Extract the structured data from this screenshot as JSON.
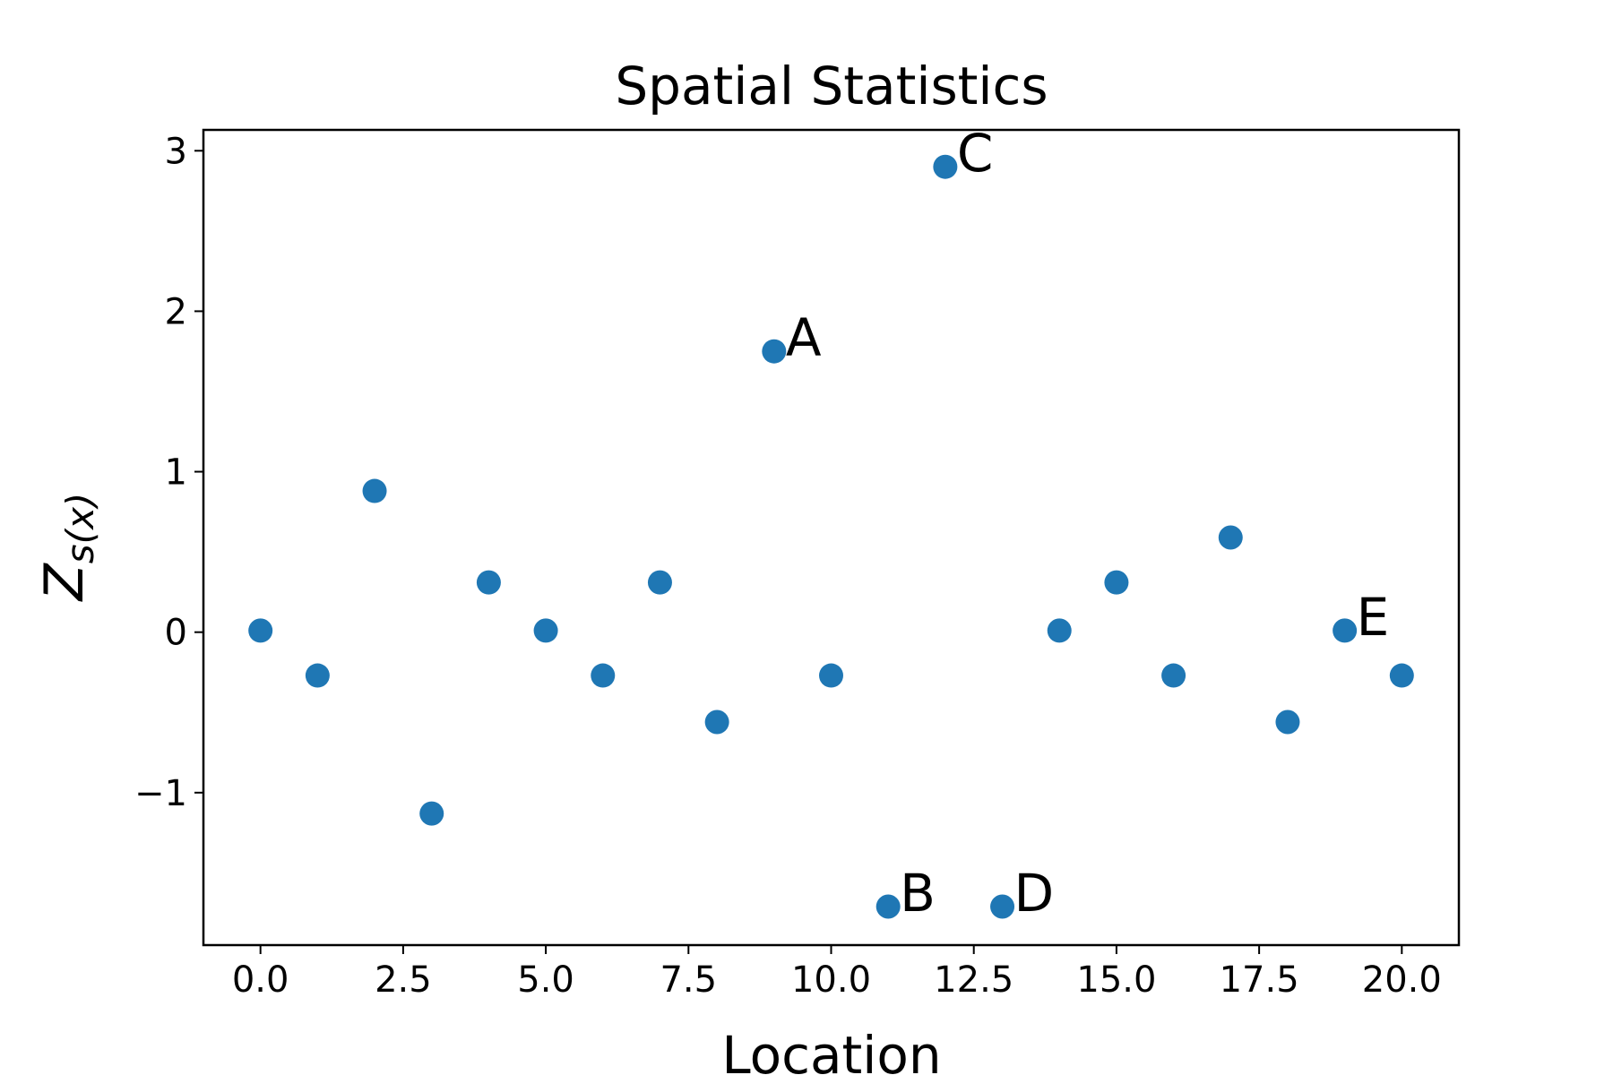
{
  "chart_data": {
    "type": "scatter",
    "title": "Spatial Statistics",
    "xlabel": "Location",
    "ylabel_main": "Z",
    "ylabel_sub": "s(x)",
    "xlim": [
      -1,
      21
    ],
    "ylim": [
      -1.95,
      3.13
    ],
    "xticks": [
      0.0,
      2.5,
      5.0,
      7.5,
      10.0,
      12.5,
      15.0,
      17.5,
      20.0
    ],
    "xtick_labels": [
      "0.0",
      "2.5",
      "5.0",
      "7.5",
      "10.0",
      "12.5",
      "15.0",
      "17.5",
      "20.0"
    ],
    "yticks": [
      -1,
      0,
      1,
      2,
      3
    ],
    "ytick_labels": [
      "−1",
      "0",
      "1",
      "2",
      "3"
    ],
    "marker_color": "#1f77b4",
    "grid": false,
    "legend": "none",
    "points": [
      {
        "x": 0,
        "y": 0.01
      },
      {
        "x": 1,
        "y": -0.27
      },
      {
        "x": 2,
        "y": 0.88
      },
      {
        "x": 3,
        "y": -1.13
      },
      {
        "x": 4,
        "y": 0.31
      },
      {
        "x": 5,
        "y": 0.01
      },
      {
        "x": 6,
        "y": -0.27
      },
      {
        "x": 7,
        "y": 0.31
      },
      {
        "x": 8,
        "y": -0.56
      },
      {
        "x": 9,
        "y": 1.75
      },
      {
        "x": 10,
        "y": -0.27
      },
      {
        "x": 11,
        "y": -1.71
      },
      {
        "x": 12,
        "y": 2.9
      },
      {
        "x": 13,
        "y": -1.71
      },
      {
        "x": 14,
        "y": 0.01
      },
      {
        "x": 15,
        "y": 0.31
      },
      {
        "x": 16,
        "y": -0.27
      },
      {
        "x": 17,
        "y": 0.59
      },
      {
        "x": 18,
        "y": -0.56
      },
      {
        "x": 19,
        "y": 0.01
      },
      {
        "x": 20,
        "y": -0.27
      }
    ],
    "annotations": [
      {
        "text": "A",
        "x": 9,
        "y": 1.75
      },
      {
        "text": "B",
        "x": 11,
        "y": -1.71
      },
      {
        "text": "C",
        "x": 12,
        "y": 2.9
      },
      {
        "text": "D",
        "x": 13,
        "y": -1.71
      },
      {
        "text": "E",
        "x": 19,
        "y": 0.01
      }
    ]
  }
}
